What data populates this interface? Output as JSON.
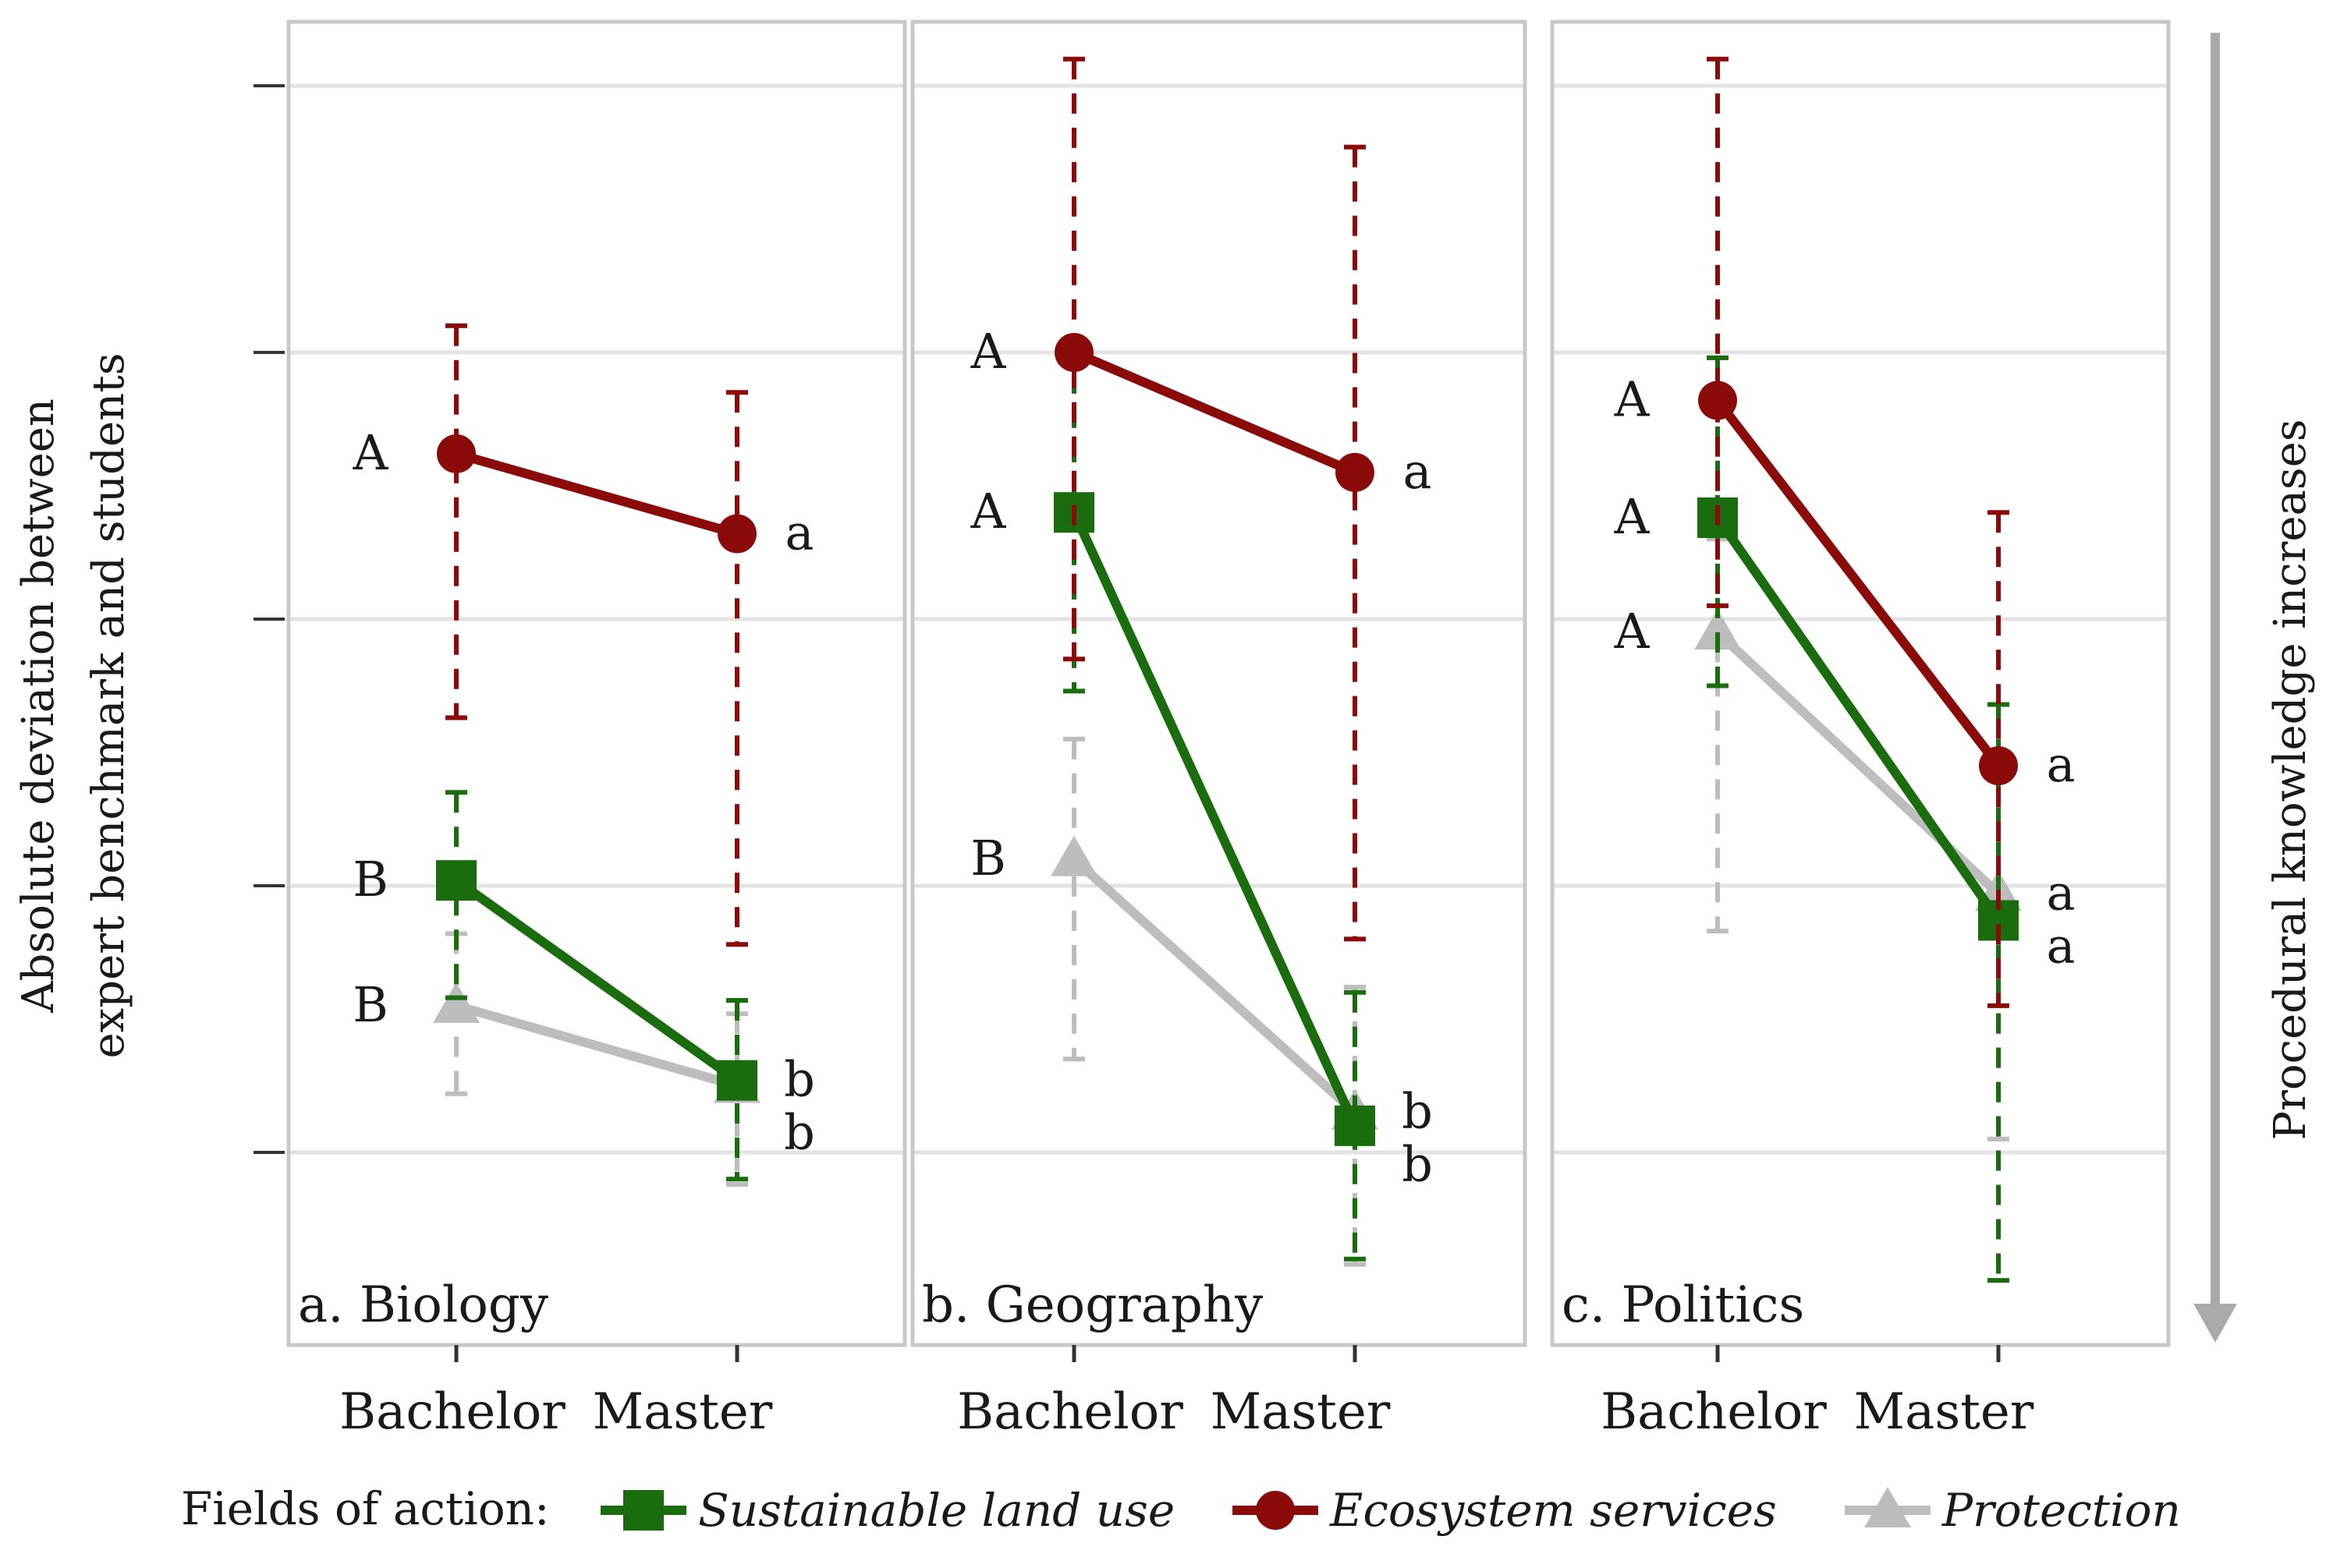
{
  "chart_data": {
    "type": "line",
    "y_axis_label_lines": [
      "Absolute deviation between",
      "expert benchmark and students"
    ],
    "right_axis_label": "Procedural knowledge increases",
    "ylim": [
      0,
      5
    ],
    "y_gridlines": [
      1,
      2,
      3,
      4,
      5
    ],
    "x_categories": [
      "Bachelor",
      "Master"
    ],
    "legend": {
      "title": "Fields of action:",
      "items": [
        {
          "label": "Sustainable land use",
          "series": "land"
        },
        {
          "label": "Ecosystem services",
          "series": "eco"
        },
        {
          "label": "Protection",
          "series": "prot"
        }
      ]
    },
    "colors": {
      "land": "#1b6b0f",
      "eco": "#8b0a0a",
      "prot": "#bdbdbd",
      "grid": "#e3e3e3",
      "frame": "#c8c8c8",
      "arrow": "#aaaaaa"
    },
    "panels": [
      {
        "label": "a. Biology",
        "series": [
          {
            "key": "eco",
            "name": "Ecosystem services",
            "values": [
              3.62,
              3.32
            ],
            "err_low": [
              2.63,
              1.78
            ],
            "err_high": [
              4.1,
              3.85
            ],
            "letters": [
              "A",
              "a"
            ]
          },
          {
            "key": "land",
            "name": "Sustainable land use",
            "values": [
              2.02,
              1.27
            ],
            "err_low": [
              1.58,
              0.9
            ],
            "err_high": [
              2.35,
              1.57
            ],
            "letters": [
              "B",
              "b"
            ]
          },
          {
            "key": "prot",
            "name": "Protection",
            "values": [
              1.55,
              1.25
            ],
            "err_low": [
              1.22,
              0.88
            ],
            "err_high": [
              1.82,
              1.52
            ],
            "letters": [
              "B",
              "b"
            ]
          }
        ]
      },
      {
        "label": "b. Geography",
        "series": [
          {
            "key": "eco",
            "name": "Ecosystem services",
            "values": [
              4.0,
              3.55
            ],
            "err_low": [
              2.85,
              1.8
            ],
            "err_high": [
              5.1,
              4.77
            ],
            "letters": [
              "A",
              "a"
            ]
          },
          {
            "key": "land",
            "name": "Sustainable land use",
            "values": [
              3.4,
              1.1
            ],
            "err_low": [
              2.73,
              0.6
            ],
            "err_high": [
              4.05,
              1.6
            ],
            "letters": [
              "A",
              "b"
            ]
          },
          {
            "key": "prot",
            "name": "Protection",
            "values": [
              2.1,
              1.15
            ],
            "err_low": [
              1.35,
              0.58
            ],
            "err_high": [
              2.55,
              1.62
            ],
            "letters": [
              "B",
              "b"
            ]
          }
        ]
      },
      {
        "label": "c. Politics",
        "series": [
          {
            "key": "eco",
            "name": "Ecosystem services",
            "values": [
              3.82,
              2.45
            ],
            "err_low": [
              3.05,
              1.55
            ],
            "err_high": [
              5.1,
              3.4
            ],
            "letters": [
              "A",
              "a"
            ]
          },
          {
            "key": "land",
            "name": "Sustainable land use",
            "values": [
              3.38,
              1.87
            ],
            "err_low": [
              2.75,
              0.52
            ],
            "err_high": [
              3.98,
              2.68
            ],
            "letters": [
              "A",
              "a"
            ]
          },
          {
            "key": "prot",
            "name": "Protection",
            "values": [
              2.95,
              1.97
            ],
            "err_low": [
              1.83,
              1.05
            ],
            "err_high": [
              3.3,
              2.42
            ],
            "letters": [
              "A",
              "a"
            ]
          }
        ]
      }
    ]
  }
}
